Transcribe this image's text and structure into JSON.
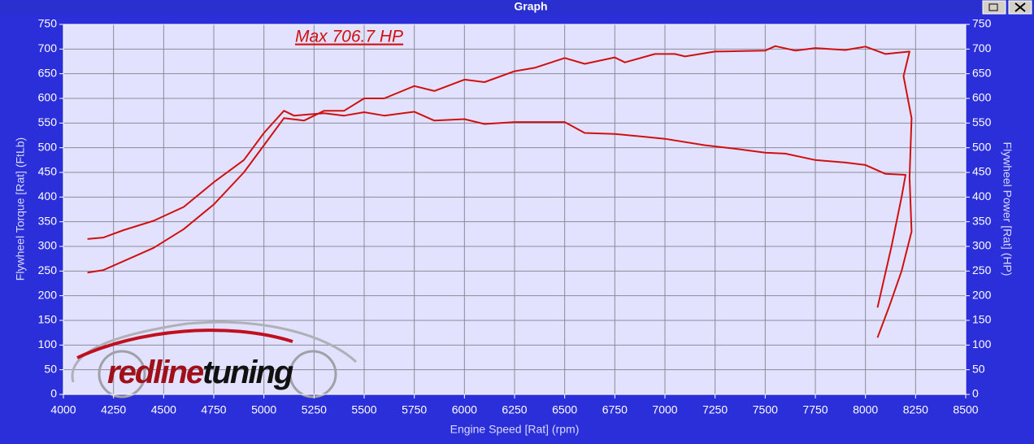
{
  "window_title": "Graph",
  "chart_data": {
    "type": "line",
    "annotation": "Max 706.7 HP",
    "logo_text": [
      "redline",
      "tuning"
    ],
    "xlabel": "Engine Speed [Rat] (rpm)",
    "ylabel": "Flywheel Torque [Rat] (FtLb)",
    "y2label": "Flywheel Power [Rat] (HP)",
    "xlim": [
      4000,
      8500
    ],
    "xticks": [
      4000,
      4250,
      4500,
      4750,
      5000,
      5250,
      5500,
      5750,
      6000,
      6250,
      6500,
      6750,
      7000,
      7250,
      7500,
      7750,
      8000,
      8250,
      8500
    ],
    "ylim": [
      0,
      750
    ],
    "yticks": [
      0,
      50,
      100,
      150,
      200,
      250,
      300,
      350,
      400,
      450,
      500,
      550,
      600,
      650,
      700,
      750
    ],
    "y2lim": [
      0,
      750
    ],
    "y2ticks": [
      0,
      50,
      100,
      150,
      200,
      250,
      300,
      350,
      400,
      450,
      500,
      550,
      600,
      650,
      700,
      750
    ],
    "grid": true,
    "series": [
      {
        "color": "#d01010",
        "axis": "y",
        "x": [
          4120,
          4200,
          4300,
          4450,
          4600,
          4750,
          4900,
          5000,
          5100,
          5150,
          5300,
          5400,
          5500,
          5600,
          5750,
          5850,
          6000,
          6100,
          6250,
          6500,
          6600,
          6750,
          6900,
          7000,
          7200,
          7350,
          7500,
          7600,
          7750,
          7900,
          8000,
          8100,
          8200,
          8180,
          8130,
          8060
        ],
        "values": [
          315,
          318,
          333,
          352,
          380,
          430,
          475,
          530,
          575,
          565,
          570,
          565,
          572,
          565,
          573,
          555,
          558,
          548,
          552,
          552,
          530,
          528,
          522,
          518,
          505,
          498,
          490,
          488,
          475,
          470,
          465,
          447,
          445,
          400,
          300,
          176
        ]
      },
      {
        "color": "#d01010",
        "axis": "y2",
        "x": [
          4120,
          4200,
          4450,
          4600,
          4750,
          4900,
          5000,
          5100,
          5200,
          5300,
          5400,
          5500,
          5600,
          5750,
          5850,
          6000,
          6100,
          6250,
          6350,
          6500,
          6600,
          6750,
          6800,
          6950,
          7050,
          7100,
          7250,
          7500,
          7550,
          7650,
          7750,
          7900,
          8000,
          8100,
          8220,
          8190,
          8230,
          8220,
          8230,
          8180,
          8120,
          8060
        ],
        "values": [
          247,
          252,
          297,
          335,
          385,
          450,
          505,
          560,
          555,
          575,
          575,
          600,
          600,
          625,
          615,
          638,
          633,
          655,
          662,
          682,
          670,
          683,
          673,
          690,
          690,
          685,
          695,
          697,
          706,
          697,
          702,
          698,
          705,
          690,
          695,
          645,
          560,
          440,
          330,
          250,
          180,
          115
        ]
      }
    ]
  }
}
